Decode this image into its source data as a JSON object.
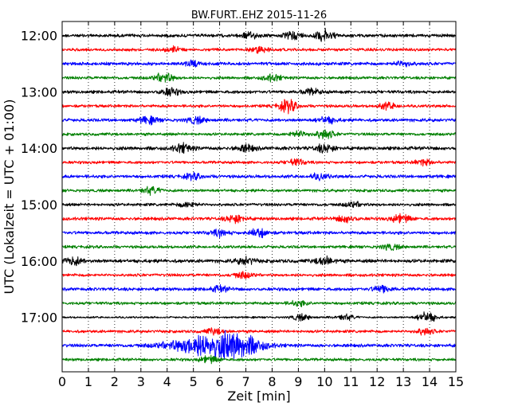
{
  "chart_data": {
    "type": "line",
    "title": "BW.FURT..EHZ 2015-11-26",
    "xlabel": "Zeit  [min]",
    "ylabel": "UTC (Lokalzeit = UTC + 01:00)",
    "xlim": [
      0,
      15
    ],
    "xticks": [
      "0",
      "1",
      "2",
      "3",
      "4",
      "5",
      "6",
      "7",
      "8",
      "9",
      "10",
      "11",
      "12",
      "13",
      "14",
      "15"
    ],
    "ylim_minutes": [
      705,
      1078
    ],
    "yticks": [
      {
        "label": "12:00",
        "minute": 720
      },
      {
        "label": "13:00",
        "minute": 780
      },
      {
        "label": "14:00",
        "minute": 840
      },
      {
        "label": "15:00",
        "minute": 900
      },
      {
        "label": "16:00",
        "minute": 960
      },
      {
        "label": "17:00",
        "minute": 1020
      }
    ],
    "trace_interval_min": 15,
    "grid": true,
    "grid_axis": "x",
    "grid_style": "dotted",
    "trace_colors": [
      "#000000",
      "#ff0000",
      "#0000ff",
      "#008000"
    ],
    "traces": [
      {
        "start": "12:00",
        "color": "#000000",
        "amplitude": 0.5,
        "events": [
          {
            "t": 7.1,
            "amp": 0.9
          },
          {
            "t": 8.8,
            "amp": 1.0
          },
          {
            "t": 10.0,
            "amp": 1.6
          }
        ]
      },
      {
        "start": "12:15",
        "color": "#ff0000",
        "amplitude": 0.45,
        "events": [
          {
            "t": 4.2,
            "amp": 0.8
          },
          {
            "t": 7.5,
            "amp": 0.8
          }
        ]
      },
      {
        "start": "12:30",
        "color": "#0000ff",
        "amplitude": 0.5,
        "events": [
          {
            "t": 5.0,
            "amp": 0.8
          },
          {
            "t": 13.0,
            "amp": 0.8
          }
        ]
      },
      {
        "start": "12:45",
        "color": "#008000",
        "amplitude": 0.45,
        "events": [
          {
            "t": 3.9,
            "amp": 1.5
          },
          {
            "t": 8.0,
            "amp": 0.9
          }
        ]
      },
      {
        "start": "13:00",
        "color": "#000000",
        "amplitude": 0.5,
        "events": [
          {
            "t": 4.1,
            "amp": 1.1
          },
          {
            "t": 9.5,
            "amp": 0.8
          }
        ]
      },
      {
        "start": "13:15",
        "color": "#ff0000",
        "amplitude": 0.45,
        "events": [
          {
            "t": 8.6,
            "amp": 1.8
          },
          {
            "t": 12.4,
            "amp": 0.9
          }
        ]
      },
      {
        "start": "13:30",
        "color": "#0000ff",
        "amplitude": 0.5,
        "events": [
          {
            "t": 3.3,
            "amp": 1.0
          },
          {
            "t": 5.1,
            "amp": 0.9
          },
          {
            "t": 10.1,
            "amp": 0.9
          }
        ]
      },
      {
        "start": "13:45",
        "color": "#008000",
        "amplitude": 0.45,
        "events": [
          {
            "t": 10.0,
            "amp": 1.3
          },
          {
            "t": 9.0,
            "amp": 0.9
          }
        ]
      },
      {
        "start": "14:00",
        "color": "#000000",
        "amplitude": 0.55,
        "events": [
          {
            "t": 4.6,
            "amp": 1.2
          },
          {
            "t": 7.0,
            "amp": 0.9
          },
          {
            "t": 10.0,
            "amp": 1.1
          }
        ]
      },
      {
        "start": "14:15",
        "color": "#ff0000",
        "amplitude": 0.45,
        "events": [
          {
            "t": 8.9,
            "amp": 0.9
          },
          {
            "t": 13.8,
            "amp": 0.8
          }
        ]
      },
      {
        "start": "14:30",
        "color": "#0000ff",
        "amplitude": 0.5,
        "events": [
          {
            "t": 5.0,
            "amp": 0.8
          },
          {
            "t": 9.8,
            "amp": 0.8
          }
        ]
      },
      {
        "start": "14:45",
        "color": "#008000",
        "amplitude": 0.45,
        "events": [
          {
            "t": 3.4,
            "amp": 1.0
          }
        ]
      },
      {
        "start": "15:00",
        "color": "#000000",
        "amplitude": 0.45,
        "events": [
          {
            "t": 4.8,
            "amp": 0.8
          },
          {
            "t": 11.1,
            "amp": 0.7
          }
        ]
      },
      {
        "start": "15:15",
        "color": "#ff0000",
        "amplitude": 0.5,
        "events": [
          {
            "t": 6.6,
            "amp": 1.1
          },
          {
            "t": 10.8,
            "amp": 1.0
          },
          {
            "t": 12.9,
            "amp": 1.2
          }
        ]
      },
      {
        "start": "15:30",
        "color": "#0000ff",
        "amplitude": 0.5,
        "events": [
          {
            "t": 7.5,
            "amp": 1.2
          },
          {
            "t": 6.0,
            "amp": 0.9
          }
        ]
      },
      {
        "start": "15:45",
        "color": "#008000",
        "amplitude": 0.45,
        "events": [
          {
            "t": 12.5,
            "amp": 0.8
          }
        ]
      },
      {
        "start": "16:00",
        "color": "#000000",
        "amplitude": 0.55,
        "events": [
          {
            "t": 0.4,
            "amp": 1.2
          },
          {
            "t": 7.0,
            "amp": 1.0
          },
          {
            "t": 10.0,
            "amp": 1.1
          }
        ]
      },
      {
        "start": "16:15",
        "color": "#ff0000",
        "amplitude": 0.45,
        "events": [
          {
            "t": 6.9,
            "amp": 0.9
          }
        ]
      },
      {
        "start": "16:30",
        "color": "#0000ff",
        "amplitude": 0.5,
        "events": [
          {
            "t": 12.2,
            "amp": 1.0
          },
          {
            "t": 6.0,
            "amp": 0.8
          }
        ]
      },
      {
        "start": "16:45",
        "color": "#008000",
        "amplitude": 0.45,
        "events": [
          {
            "t": 9.0,
            "amp": 0.7
          }
        ]
      },
      {
        "start": "17:00",
        "color": "#000000",
        "amplitude": 0.3,
        "events": [
          {
            "t": 9.1,
            "amp": 0.9
          },
          {
            "t": 10.8,
            "amp": 0.8
          },
          {
            "t": 13.9,
            "amp": 1.6
          }
        ]
      },
      {
        "start": "17:15",
        "color": "#ff0000",
        "amplitude": 0.45,
        "events": [
          {
            "t": 5.8,
            "amp": 0.8
          },
          {
            "t": 13.8,
            "amp": 0.9
          }
        ]
      },
      {
        "start": "17:30",
        "color": "#0000ff",
        "amplitude": 0.5,
        "events": [
          {
            "t": 5.6,
            "amp": 3.4,
            "width": 1.4
          },
          {
            "t": 6.8,
            "amp": 2.2,
            "width": 0.8
          }
        ]
      },
      {
        "start": "17:45",
        "color": "#008000",
        "amplitude": 0.45,
        "events": [
          {
            "t": 5.6,
            "amp": 1.0
          }
        ]
      }
    ]
  }
}
